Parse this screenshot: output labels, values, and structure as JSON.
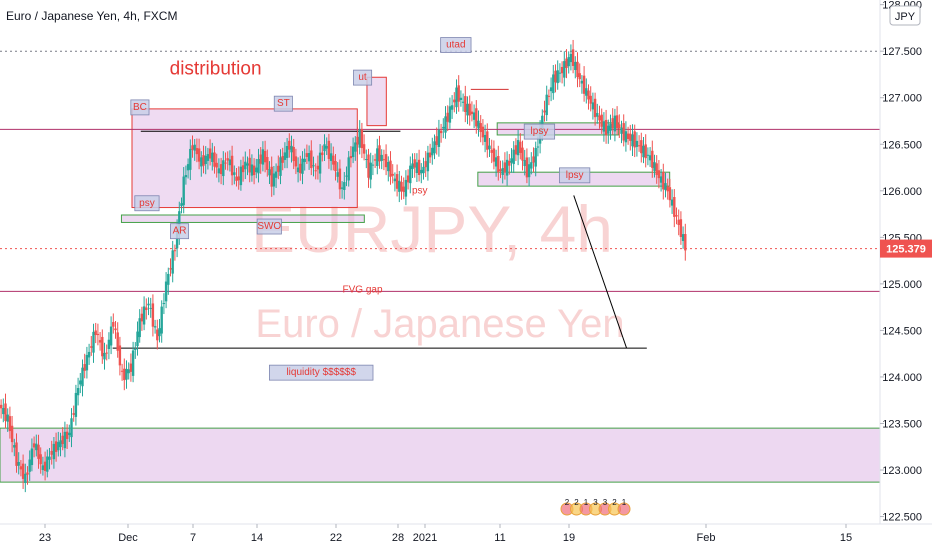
{
  "header": {
    "symbol_title": "Euro / Japanese Yen, 4h, FXCM",
    "currency_badge": "JPY"
  },
  "watermark": {
    "ticker": "EURJPY, 4h",
    "name": "Euro / Japanese Yen"
  },
  "colors": {
    "up": "#26a69a",
    "down": "#ef5350",
    "annotation_red": "#e53935",
    "zone_fill": "#e1bee7",
    "zone_green": "#43a047",
    "level_magenta": "#b0306a",
    "price_tag": "#ef5350"
  },
  "chart_data": {
    "type": "candlestick",
    "title": "Euro / Japanese Yen, 4h, FXCM",
    "x_axis_labels": [
      "23",
      "Dec",
      "7",
      "14",
      "22",
      "28",
      "2021",
      "11",
      "19",
      "Feb",
      "15"
    ],
    "y_ticks": [
      "128.000",
      "127.500",
      "127.000",
      "126.500",
      "126.000",
      "125.500",
      "125.000",
      "124.500",
      "124.000",
      "123.500",
      "123.000",
      "122.500"
    ],
    "ylim": [
      122.42,
      128.05
    ],
    "x_range": [
      0,
      100
    ],
    "last_price": 125.379,
    "last_price_label": "125.379",
    "price_path": [
      [
        0,
        123.7
      ],
      [
        1,
        123.55
      ],
      [
        2,
        123.1
      ],
      [
        3,
        122.9
      ],
      [
        4,
        123.3
      ],
      [
        5,
        123.0
      ],
      [
        6,
        123.2
      ],
      [
        7,
        123.3
      ],
      [
        8,
        123.4
      ],
      [
        9,
        123.9
      ],
      [
        10,
        124.2
      ],
      [
        11,
        124.5
      ],
      [
        12,
        124.2
      ],
      [
        13,
        124.6
      ],
      [
        14,
        124.0
      ],
      [
        15,
        124.1
      ],
      [
        16,
        124.6
      ],
      [
        17,
        124.8
      ],
      [
        18,
        124.4
      ],
      [
        19,
        125.0
      ],
      [
        20,
        125.4
      ],
      [
        21,
        126.1
      ],
      [
        22,
        126.5
      ],
      [
        23,
        126.3
      ],
      [
        24,
        126.4
      ],
      [
        25,
        126.2
      ],
      [
        26,
        126.35
      ],
      [
        27,
        126.1
      ],
      [
        28,
        126.3
      ],
      [
        29,
        126.2
      ],
      [
        30,
        126.4
      ],
      [
        31,
        126.1
      ],
      [
        32,
        126.3
      ],
      [
        33,
        126.5
      ],
      [
        34,
        126.2
      ],
      [
        35,
        126.4
      ],
      [
        36,
        126.2
      ],
      [
        37,
        126.5
      ],
      [
        38,
        126.3
      ],
      [
        39,
        126.0
      ],
      [
        40,
        126.4
      ],
      [
        41,
        126.6
      ],
      [
        42,
        126.2
      ],
      [
        43,
        126.4
      ],
      [
        44,
        126.3
      ],
      [
        45,
        126.1
      ],
      [
        46,
        126.0
      ],
      [
        47,
        126.3
      ],
      [
        48,
        126.2
      ],
      [
        49,
        126.4
      ],
      [
        50,
        126.6
      ],
      [
        51,
        126.8
      ],
      [
        52,
        127.05
      ],
      [
        53,
        126.9
      ],
      [
        54,
        126.8
      ],
      [
        55,
        126.6
      ],
      [
        56,
        126.4
      ],
      [
        57,
        126.2
      ],
      [
        58,
        126.3
      ],
      [
        59,
        126.5
      ],
      [
        60,
        126.2
      ],
      [
        61,
        126.4
      ],
      [
        62,
        126.9
      ],
      [
        63,
        127.2
      ],
      [
        64,
        127.3
      ],
      [
        65,
        127.45
      ],
      [
        66,
        127.2
      ],
      [
        67,
        127.0
      ],
      [
        68,
        126.8
      ],
      [
        69,
        126.65
      ],
      [
        70,
        126.75
      ],
      [
        71,
        126.6
      ],
      [
        72,
        126.55
      ],
      [
        73,
        126.45
      ],
      [
        74,
        126.35
      ],
      [
        75,
        126.15
      ],
      [
        76,
        126.0
      ],
      [
        77,
        125.7
      ],
      [
        78,
        125.4
      ]
    ],
    "annotations": [
      {
        "text": "distribution",
        "x": 24.5,
        "y": 127.25,
        "kind": "title"
      },
      {
        "text": "BC",
        "x": 15.9,
        "y": 126.88,
        "kind": "box"
      },
      {
        "text": "ST",
        "x": 32.2,
        "y": 126.92,
        "kind": "box"
      },
      {
        "text": "ut",
        "x": 41.2,
        "y": 127.2,
        "kind": "box"
      },
      {
        "text": "utad",
        "x": 51.8,
        "y": 127.55,
        "kind": "box"
      },
      {
        "text": "psy",
        "x": 16.7,
        "y": 125.85,
        "kind": "box"
      },
      {
        "text": "AR",
        "x": 20.4,
        "y": 125.55,
        "kind": "box"
      },
      {
        "text": "SWO",
        "x": 30.6,
        "y": 125.6,
        "kind": "box"
      },
      {
        "text": "psy",
        "x": 47.7,
        "y": 125.98,
        "kind": "plain"
      },
      {
        "text": "lpsy",
        "x": 61.3,
        "y": 126.62,
        "kind": "box"
      },
      {
        "text": "lpsy",
        "x": 65.3,
        "y": 126.15,
        "kind": "box"
      },
      {
        "text": "FVG gap",
        "x": 41.2,
        "y": 124.92,
        "kind": "plain"
      },
      {
        "text": "liquidity $$$$$$",
        "x": 36.5,
        "y": 124.03,
        "kind": "box"
      }
    ],
    "levels": [
      {
        "name": "level-126.66",
        "y": 126.66,
        "x1": 0,
        "x2": 100,
        "color": "level_magenta",
        "dashed": false
      },
      {
        "name": "level-124.92",
        "y": 124.92,
        "x1": 0,
        "x2": 100,
        "color": "level_magenta",
        "dashed": false
      },
      {
        "name": "level-127.5",
        "y": 127.5,
        "x1": 0,
        "x2": 100,
        "color": "#787b86",
        "dashed": true
      },
      {
        "name": "level-125.379",
        "y": 125.379,
        "x1": 0,
        "x2": 100,
        "color": "price_tag",
        "dashed": true
      },
      {
        "name": "range-top-line",
        "y": 126.64,
        "x1": 16,
        "x2": 45.5,
        "color": "#000000",
        "dashed": false
      },
      {
        "name": "liquidity-line",
        "y": 124.31,
        "x1": 12.8,
        "x2": 73.5,
        "color": "#000000",
        "dashed": false
      },
      {
        "name": "utad-line",
        "y": 127.09,
        "x1": 53.5,
        "x2": 57.8,
        "color": "#d32f2f",
        "dashed": false
      }
    ],
    "zones": [
      {
        "name": "distribution-zone",
        "x1": 15,
        "x2": 40.6,
        "y1": 125.82,
        "y2": 126.88,
        "style": "red"
      },
      {
        "name": "ut-zone",
        "x1": 41.7,
        "x2": 43.9,
        "y1": 126.7,
        "y2": 127.22,
        "style": "red"
      },
      {
        "name": "support-zone",
        "x1": 13.8,
        "x2": 41.4,
        "y1": 125.66,
        "y2": 125.74,
        "style": "green"
      },
      {
        "name": "lpsy-zone-upper",
        "x1": 56.5,
        "x2": 70.3,
        "y1": 126.6,
        "y2": 126.73,
        "style": "green"
      },
      {
        "name": "lpsy-zone-lower",
        "x1": 54.3,
        "x2": 76.1,
        "y1": 126.05,
        "y2": 126.2,
        "style": "green"
      },
      {
        "name": "demand-zone",
        "x1": 0,
        "x2": 100,
        "y1": 122.87,
        "y2": 123.45,
        "style": "green"
      }
    ],
    "projection": [
      [
        65.2,
        125.95
      ],
      [
        71.2,
        124.31
      ]
    ],
    "event_markers": [
      "2",
      "2",
      "1",
      "3",
      "3",
      "2",
      "1"
    ]
  }
}
